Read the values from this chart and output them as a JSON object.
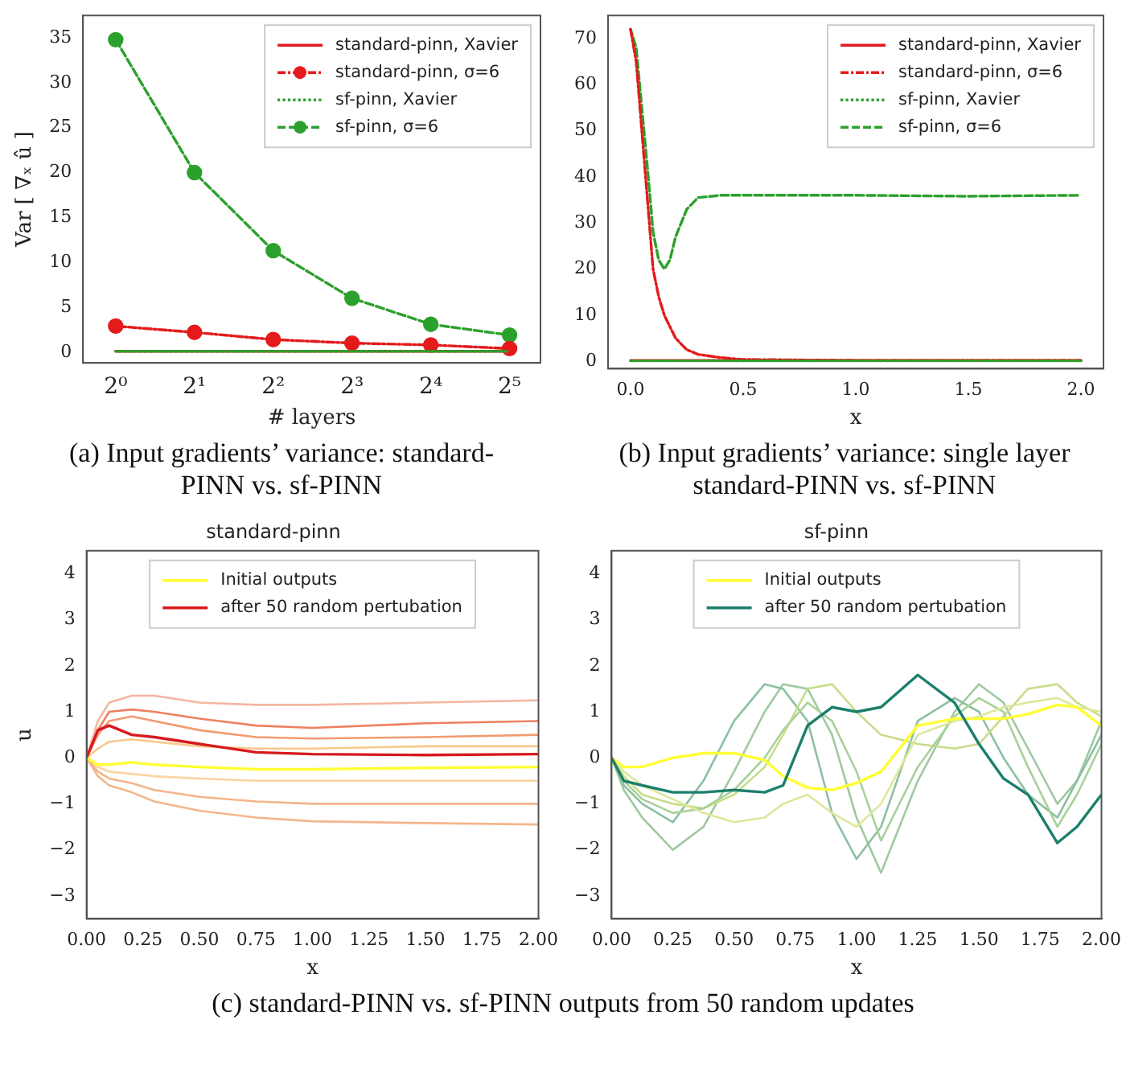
{
  "chart_data": [
    {
      "type": "line",
      "xlabel": "# layers",
      "ylabel": "Var [ ∇ₓ û ]",
      "log": "x",
      "x": [
        1,
        2,
        4,
        8,
        16,
        32
      ],
      "xlim": [
        0.75,
        42
      ],
      "xticks": [
        {
          "value": 1,
          "label": "2⁰"
        },
        {
          "value": 2,
          "label": "2¹"
        },
        {
          "value": 4,
          "label": "2²"
        },
        {
          "value": 8,
          "label": "2³"
        },
        {
          "value": 16,
          "label": "2⁴"
        },
        {
          "value": 32,
          "label": "2⁵"
        }
      ],
      "ylim": [
        -1.2,
        37.5
      ],
      "yticks": [
        0,
        5,
        10,
        15,
        20,
        25,
        30,
        35
      ],
      "grid": false,
      "legend": "top right",
      "annotations": [
        "(a) Input gradients’ variance: standard-PINN vs. sf-PINN"
      ],
      "series": [
        {
          "name": "standard-pinn, Xavier",
          "color": "#e41a1c",
          "line_style": "solid",
          "marker": "none",
          "values": [
            0.1,
            0.1,
            0.1,
            0.1,
            0.1,
            0.1
          ]
        },
        {
          "name": "standard-pinn, σ=6",
          "color": "#e41a1c",
          "line_style": "dashdot",
          "marker": "circle",
          "values": [
            2.9,
            2.2,
            1.4,
            1.0,
            0.8,
            0.4
          ]
        },
        {
          "name": "sf-pinn, Xavier",
          "color": "#2ca02c",
          "line_style": "dotted",
          "marker": "none",
          "values": [
            0.1,
            0.1,
            0.1,
            0.1,
            0.1,
            0.1
          ]
        },
        {
          "name": "sf-pinn, σ=6",
          "color": "#2ca02c",
          "line_style": "dashed",
          "marker": "circle",
          "values": [
            34.8,
            20.0,
            11.3,
            6.0,
            3.1,
            1.9
          ]
        }
      ]
    },
    {
      "type": "line",
      "xlabel": "x",
      "xlim": [
        -0.1,
        2.1
      ],
      "xticks": [
        {
          "value": 0,
          "label": "0.0"
        },
        {
          "value": 0.5,
          "label": "0.5"
        },
        {
          "value": 1,
          "label": "1.0"
        },
        {
          "value": 1.5,
          "label": "1.5"
        },
        {
          "value": 2,
          "label": "2.0"
        }
      ],
      "ylim": [
        -1.6,
        75
      ],
      "yticks": [
        0,
        10,
        20,
        30,
        40,
        50,
        60,
        70
      ],
      "grid": false,
      "legend": "top right",
      "annotations": [
        "(b) Input gradients’ variance: single layer standard-PINN vs. sf-PINN"
      ],
      "series": [
        {
          "name": "standard-pinn, Xavier",
          "color": "#e41a1c",
          "line_style": "solid",
          "marker": "none",
          "x": [
            0,
            2
          ],
          "values": [
            0.2,
            0.2
          ]
        },
        {
          "name": "standard-pinn, σ=6",
          "color": "#e41a1c",
          "line_style": "dashdot",
          "marker": "none",
          "x": [
            0,
            0.025,
            0.05,
            0.075,
            0.1,
            0.125,
            0.15,
            0.2,
            0.25,
            0.3,
            0.4,
            0.5,
            1,
            2
          ],
          "values": [
            72,
            65,
            50,
            35,
            20,
            14,
            10,
            5,
            2.5,
            1.5,
            0.8,
            0.4,
            0.2,
            0.2
          ]
        },
        {
          "name": "sf-pinn, Xavier",
          "color": "#2ca02c",
          "line_style": "dotted",
          "marker": "none",
          "x": [
            0,
            2
          ],
          "values": [
            0.1,
            0.1
          ]
        },
        {
          "name": "sf-pinn, σ=6",
          "color": "#2ca02c",
          "line_style": "dashed",
          "marker": "none",
          "x": [
            0,
            0.025,
            0.05,
            0.075,
            0.1,
            0.125,
            0.15,
            0.175,
            0.2,
            0.25,
            0.3,
            0.4,
            1,
            1.5,
            2
          ],
          "values": [
            72,
            68,
            55,
            42,
            28,
            22,
            20,
            22,
            27,
            33,
            35.5,
            36,
            36,
            35.8,
            36
          ]
        }
      ]
    },
    {
      "type": "line",
      "title": "standard-pinn",
      "xlabel": "x",
      "ylabel": "u",
      "x": [
        0,
        0.05,
        0.1,
        0.2,
        0.3,
        0.5,
        0.75,
        1,
        1.5,
        2
      ],
      "xlim": [
        0,
        2
      ],
      "xticks": [
        {
          "value": 0,
          "label": "0.00"
        },
        {
          "value": 0.25,
          "label": "0.25"
        },
        {
          "value": 0.5,
          "label": "0.50"
        },
        {
          "value": 0.75,
          "label": "0.75"
        },
        {
          "value": 1,
          "label": "1.00"
        },
        {
          "value": 1.25,
          "label": "1.25"
        },
        {
          "value": 1.5,
          "label": "1.50"
        },
        {
          "value": 1.75,
          "label": "1.75"
        },
        {
          "value": 2,
          "label": "2.00"
        }
      ],
      "ylim": [
        -3.5,
        4.5
      ],
      "yticks": [
        -3,
        -2,
        -1,
        0,
        1,
        2,
        3,
        4
      ],
      "grid": false,
      "legend": "top",
      "annotations": [
        "(c) standard-PINN vs. sf-PINN outputs from 50 random updates"
      ],
      "series": [
        {
          "color": "#f4b6a0",
          "values": [
            0,
            0.8,
            1.2,
            1.35,
            1.35,
            1.2,
            1.15,
            1.15,
            1.2,
            1.25
          ]
        },
        {
          "color": "#ef8060",
          "values": [
            0,
            0.6,
            1.0,
            1.05,
            1.0,
            0.85,
            0.7,
            0.65,
            0.75,
            0.8
          ]
        },
        {
          "color": "#f39a70",
          "values": [
            0,
            0.5,
            0.8,
            0.9,
            0.8,
            0.6,
            0.45,
            0.42,
            0.45,
            0.5
          ]
        },
        {
          "color": "#f8c78a",
          "values": [
            0,
            0.2,
            0.35,
            0.4,
            0.35,
            0.25,
            0.2,
            0.2,
            0.25,
            0.25
          ]
        },
        {
          "color": "#f9d3a0",
          "values": [
            0,
            -0.2,
            -0.3,
            -0.35,
            -0.4,
            -0.45,
            -0.5,
            -0.5,
            -0.5,
            -0.5
          ]
        },
        {
          "color": "#f5b58a",
          "values": [
            0,
            -0.3,
            -0.45,
            -0.55,
            -0.7,
            -0.85,
            -0.95,
            -1.0,
            -1.0,
            -1.0
          ]
        },
        {
          "color": "#f5b58a",
          "values": [
            0,
            -0.4,
            -0.6,
            -0.75,
            -0.95,
            -1.15,
            -1.3,
            -1.38,
            -1.42,
            -1.45
          ]
        },
        {
          "name": "Initial outputs",
          "color": "#ffff33",
          "values": [
            0,
            -0.15,
            -0.15,
            -0.1,
            -0.15,
            -0.2,
            -0.25,
            -0.25,
            -0.22,
            -0.2
          ]
        },
        {
          "name": "after 50 random pertubation",
          "color": "#d7191c",
          "values": [
            0,
            0.6,
            0.7,
            0.5,
            0.45,
            0.3,
            0.12,
            0.08,
            0.06,
            0.08
          ]
        }
      ]
    },
    {
      "type": "line",
      "title": "sf-pinn",
      "xlabel": "x",
      "x": [
        0,
        0.05,
        0.125,
        0.25,
        0.375,
        0.5,
        0.625,
        0.7,
        0.8,
        0.9,
        1.0,
        1.1,
        1.25,
        1.4,
        1.5,
        1.6,
        1.7,
        1.82,
        1.9,
        2.0
      ],
      "xlim": [
        0,
        2
      ],
      "xticks": [
        {
          "value": 0,
          "label": "0.00"
        },
        {
          "value": 0.25,
          "label": "0.25"
        },
        {
          "value": 0.5,
          "label": "0.50"
        },
        {
          "value": 0.75,
          "label": "0.75"
        },
        {
          "value": 1,
          "label": "1.00"
        },
        {
          "value": 1.25,
          "label": "1.25"
        },
        {
          "value": 1.5,
          "label": "1.50"
        },
        {
          "value": 1.75,
          "label": "1.75"
        },
        {
          "value": 2,
          "label": "2.00"
        }
      ],
      "ylim": [
        -3.5,
        4.5
      ],
      "yticks": [
        -3,
        -2,
        -1,
        0,
        1,
        2,
        3,
        4
      ],
      "grid": false,
      "legend": "top",
      "series": [
        {
          "color": "#9fc9a0",
          "values": [
            0,
            -0.7,
            -1.3,
            -2.0,
            -1.5,
            -0.3,
            1.0,
            1.6,
            1.5,
            0.5,
            -1.3,
            -2.5,
            -0.5,
            1.0,
            1.6,
            1.2,
            0.2,
            -1.0,
            -0.5,
            0.8
          ]
        },
        {
          "color": "#8cc0a0",
          "values": [
            0,
            -0.6,
            -1.0,
            -1.4,
            -0.5,
            0.8,
            1.6,
            1.5,
            0.8,
            -1.2,
            -2.2,
            -1.5,
            0.8,
            1.3,
            1.0,
            0.0,
            -0.8,
            -1.3,
            -0.5,
            0.5
          ]
        },
        {
          "color": "#c7dd8a",
          "values": [
            0,
            -0.4,
            -0.8,
            -1.0,
            -1.1,
            -0.8,
            -0.2,
            0.5,
            1.5,
            1.6,
            1.0,
            0.5,
            0.3,
            0.2,
            0.3,
            0.9,
            1.5,
            1.6,
            1.2,
            0.9
          ]
        },
        {
          "color": "#a8d19a",
          "values": [
            0,
            -0.5,
            -0.9,
            -1.2,
            -1.1,
            -0.7,
            0.0,
            0.6,
            1.2,
            0.8,
            -0.3,
            -1.8,
            -0.2,
            0.9,
            1.3,
            1.0,
            -0.2,
            -1.5,
            -0.8,
            0.3
          ]
        },
        {
          "color": "#dde89a",
          "values": [
            0,
            -0.3,
            -0.6,
            -0.9,
            -1.2,
            -1.4,
            -1.3,
            -1.0,
            -0.8,
            -1.2,
            -1.5,
            -1.0,
            0.5,
            0.8,
            0.9,
            1.1,
            1.2,
            1.3,
            1.1,
            1.0
          ]
        },
        {
          "name": "Initial outputs",
          "color": "#ffff33",
          "values": [
            0,
            -0.2,
            -0.2,
            0,
            0.1,
            0.1,
            -0.05,
            -0.4,
            -0.65,
            -0.7,
            -0.55,
            -0.3,
            0.7,
            0.85,
            0.85,
            0.85,
            0.95,
            1.15,
            1.1,
            0.7
          ]
        },
        {
          "name": "after 50 random pertubation",
          "color": "#1b7f6b",
          "values": [
            0,
            -0.5,
            -0.6,
            -0.75,
            -0.75,
            -0.7,
            -0.75,
            -0.6,
            0.7,
            1.1,
            1.0,
            1.1,
            1.8,
            1.2,
            0.3,
            -0.45,
            -0.8,
            -1.85,
            -1.5,
            -0.8
          ]
        }
      ]
    }
  ]
}
